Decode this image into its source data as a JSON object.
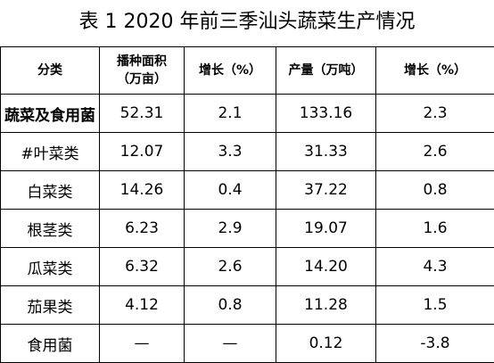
{
  "title": "表 1  2020 年前三季汕头蔬菜生产情况",
  "headers": {
    "category": "分类",
    "area_line1": "播种面积",
    "area_line2": "（万亩）",
    "area_growth": "增长（%）",
    "output": "产量（万吨）",
    "output_growth": "增长（%）"
  },
  "rows": [
    {
      "category": "蔬菜及食用菌",
      "area": "52.31",
      "area_growth": "2.1",
      "output": "133.16",
      "output_growth": "2.3"
    },
    {
      "category": "#叶菜类",
      "area": "12.07",
      "area_growth": "3.3",
      "output": "31.33",
      "output_growth": "2.6"
    },
    {
      "category": "白菜类",
      "area": "14.26",
      "area_growth": "0.4",
      "output": "37.22",
      "output_growth": "0.8"
    },
    {
      "category": "根茎类",
      "area": "6.23",
      "area_growth": "2.9",
      "output": "19.07",
      "output_growth": "1.6"
    },
    {
      "category": "瓜菜类",
      "area": "6.32",
      "area_growth": "2.6",
      "output": "14.20",
      "output_growth": "4.3"
    },
    {
      "category": "茄果类",
      "area": "4.12",
      "area_growth": "0.8",
      "output": "11.28",
      "output_growth": "1.5"
    },
    {
      "category": "食用菌",
      "area": "—",
      "area_growth": "—",
      "output": "0.12",
      "output_growth": "-3.8"
    }
  ]
}
